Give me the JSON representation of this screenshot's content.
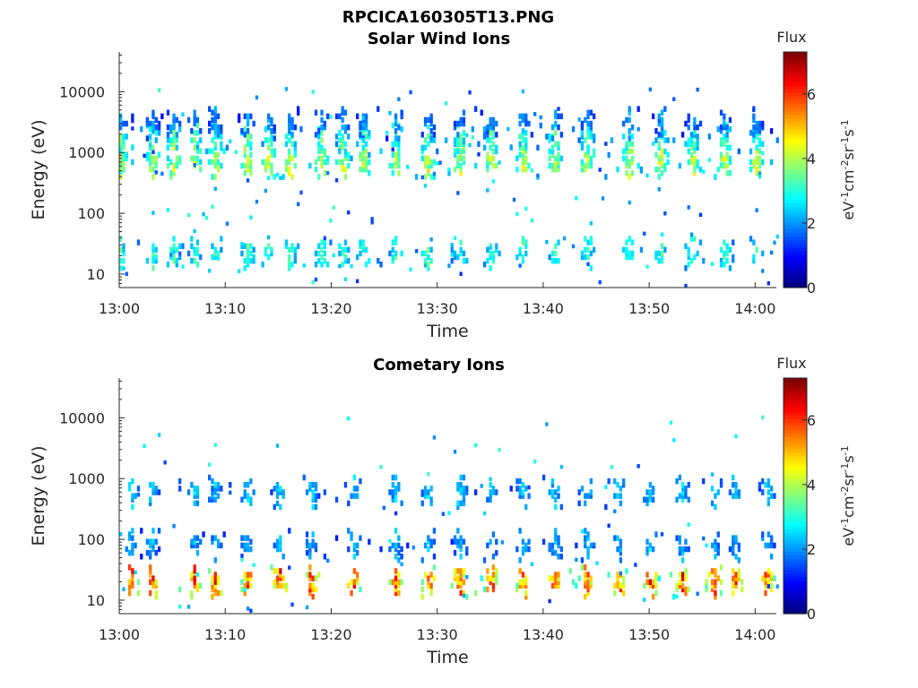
{
  "figure": {
    "title": "RPCICA160305T13.PNG"
  },
  "chart_data": [
    {
      "type": "heatmap",
      "title": "Solar Wind Ions",
      "xlabel": "Time",
      "ylabel": "Energy (eV)",
      "yscale": "log",
      "xlim": [
        "13:00",
        "14:02"
      ],
      "ylim": [
        6,
        45000
      ],
      "x_ticks": [
        "13:00",
        "13:10",
        "13:20",
        "13:30",
        "13:40",
        "13:50",
        "14:00"
      ],
      "y_ticks": [
        "10",
        "100",
        "1000",
        "10000"
      ],
      "colorbar": {
        "label": "Flux",
        "unit_label": "eV-1cm-2sr-1s-1",
        "ticks": [
          "0",
          "2",
          "4",
          "6"
        ],
        "range": [
          0,
          7.3
        ],
        "colormap": "jet"
      },
      "bands": [
        {
          "energy_eV": 700,
          "peak_flux": 4.5,
          "description_key": "main band"
        },
        {
          "energy_eV": 1600,
          "peak_flux": 3.6
        },
        {
          "energy_eV": 3000,
          "peak_flux": 2.2
        },
        {
          "energy_eV": 22,
          "peak_flux": 3.4
        }
      ],
      "pulse_times": [
        "13:00",
        "13:03",
        "13:05",
        "13:07",
        "13:09",
        "13:12",
        "13:14",
        "13:16",
        "13:19",
        "13:21",
        "13:23",
        "13:26",
        "13:29",
        "13:32",
        "13:35",
        "13:38",
        "13:41",
        "13:44",
        "13:48",
        "13:51",
        "13:54",
        "13:57",
        "14:00"
      ]
    },
    {
      "type": "heatmap",
      "title": "Cometary Ions",
      "xlabel": "Time",
      "ylabel": "Energy (eV)",
      "yscale": "log",
      "xlim": [
        "13:00",
        "14:02"
      ],
      "ylim": [
        6,
        45000
      ],
      "x_ticks": [
        "13:00",
        "13:10",
        "13:20",
        "13:30",
        "13:40",
        "13:50",
        "14:00"
      ],
      "y_ticks": [
        "10",
        "100",
        "1000",
        "10000"
      ],
      "colorbar": {
        "label": "Flux",
        "unit_label": "eV-1cm-2sr-1s-1",
        "ticks": [
          "0",
          "2",
          "4",
          "6"
        ],
        "range": [
          0,
          7.3
        ],
        "colormap": "jet"
      },
      "bands": [
        {
          "energy_eV": 20,
          "peak_flux": 6.3
        },
        {
          "energy_eV": 600,
          "peak_flux": 2.6
        },
        {
          "energy_eV": 80,
          "peak_flux": 2.4
        }
      ],
      "pulse_times": [
        "13:01",
        "13:03",
        "13:07",
        "13:09",
        "13:12",
        "13:15",
        "13:18",
        "13:22",
        "13:26",
        "13:29",
        "13:32",
        "13:35",
        "13:38",
        "13:41",
        "13:44",
        "13:47",
        "13:50",
        "13:53",
        "13:56",
        "13:58",
        "14:01"
      ]
    }
  ]
}
